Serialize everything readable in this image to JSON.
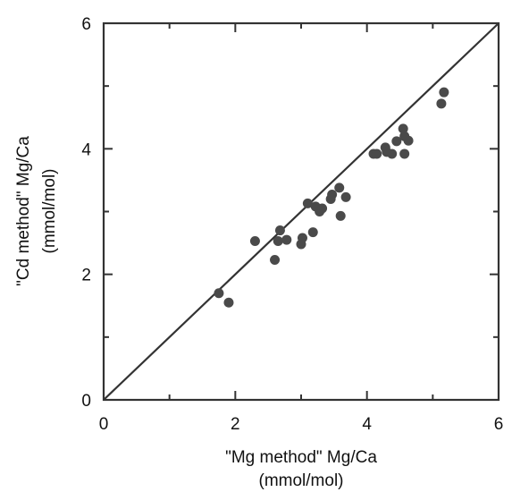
{
  "chart_data": {
    "type": "scatter",
    "title": "",
    "xlabel": "\"Mg method\" Mg/Ca",
    "xlabel_unit": "(mmol/mol)",
    "ylabel": "\"Cd method\" Mg/Ca",
    "ylabel_unit": "(mmol/mol)",
    "xlim": [
      0,
      6
    ],
    "ylim": [
      0,
      6
    ],
    "xticks": [
      0,
      2,
      4,
      6
    ],
    "yticks": [
      0,
      2,
      4,
      6
    ],
    "minor_tick_step": 1,
    "grid": false,
    "reference_line": {
      "from": [
        0,
        0
      ],
      "to": [
        6,
        6
      ]
    },
    "marker_color": "#4a4a4a",
    "points": [
      {
        "x": 1.75,
        "y": 1.7
      },
      {
        "x": 1.9,
        "y": 1.55
      },
      {
        "x": 2.3,
        "y": 2.53
      },
      {
        "x": 2.6,
        "y": 2.23
      },
      {
        "x": 2.65,
        "y": 2.53
      },
      {
        "x": 2.68,
        "y": 2.7
      },
      {
        "x": 2.78,
        "y": 2.55
      },
      {
        "x": 3.0,
        "y": 2.48
      },
      {
        "x": 3.02,
        "y": 2.58
      },
      {
        "x": 3.1,
        "y": 3.13
      },
      {
        "x": 3.18,
        "y": 2.67
      },
      {
        "x": 3.22,
        "y": 3.08
      },
      {
        "x": 3.28,
        "y": 3.0
      },
      {
        "x": 3.32,
        "y": 3.05
      },
      {
        "x": 3.45,
        "y": 3.2
      },
      {
        "x": 3.47,
        "y": 3.27
      },
      {
        "x": 3.58,
        "y": 3.38
      },
      {
        "x": 3.6,
        "y": 2.93
      },
      {
        "x": 3.68,
        "y": 3.23
      },
      {
        "x": 4.1,
        "y": 3.92
      },
      {
        "x": 4.15,
        "y": 3.92
      },
      {
        "x": 4.28,
        "y": 4.02
      },
      {
        "x": 4.3,
        "y": 3.95
      },
      {
        "x": 4.38,
        "y": 3.92
      },
      {
        "x": 4.45,
        "y": 4.12
      },
      {
        "x": 4.55,
        "y": 4.32
      },
      {
        "x": 4.57,
        "y": 4.2
      },
      {
        "x": 4.57,
        "y": 3.92
      },
      {
        "x": 4.63,
        "y": 4.13
      },
      {
        "x": 5.13,
        "y": 4.72
      },
      {
        "x": 5.17,
        "y": 4.9
      }
    ]
  }
}
